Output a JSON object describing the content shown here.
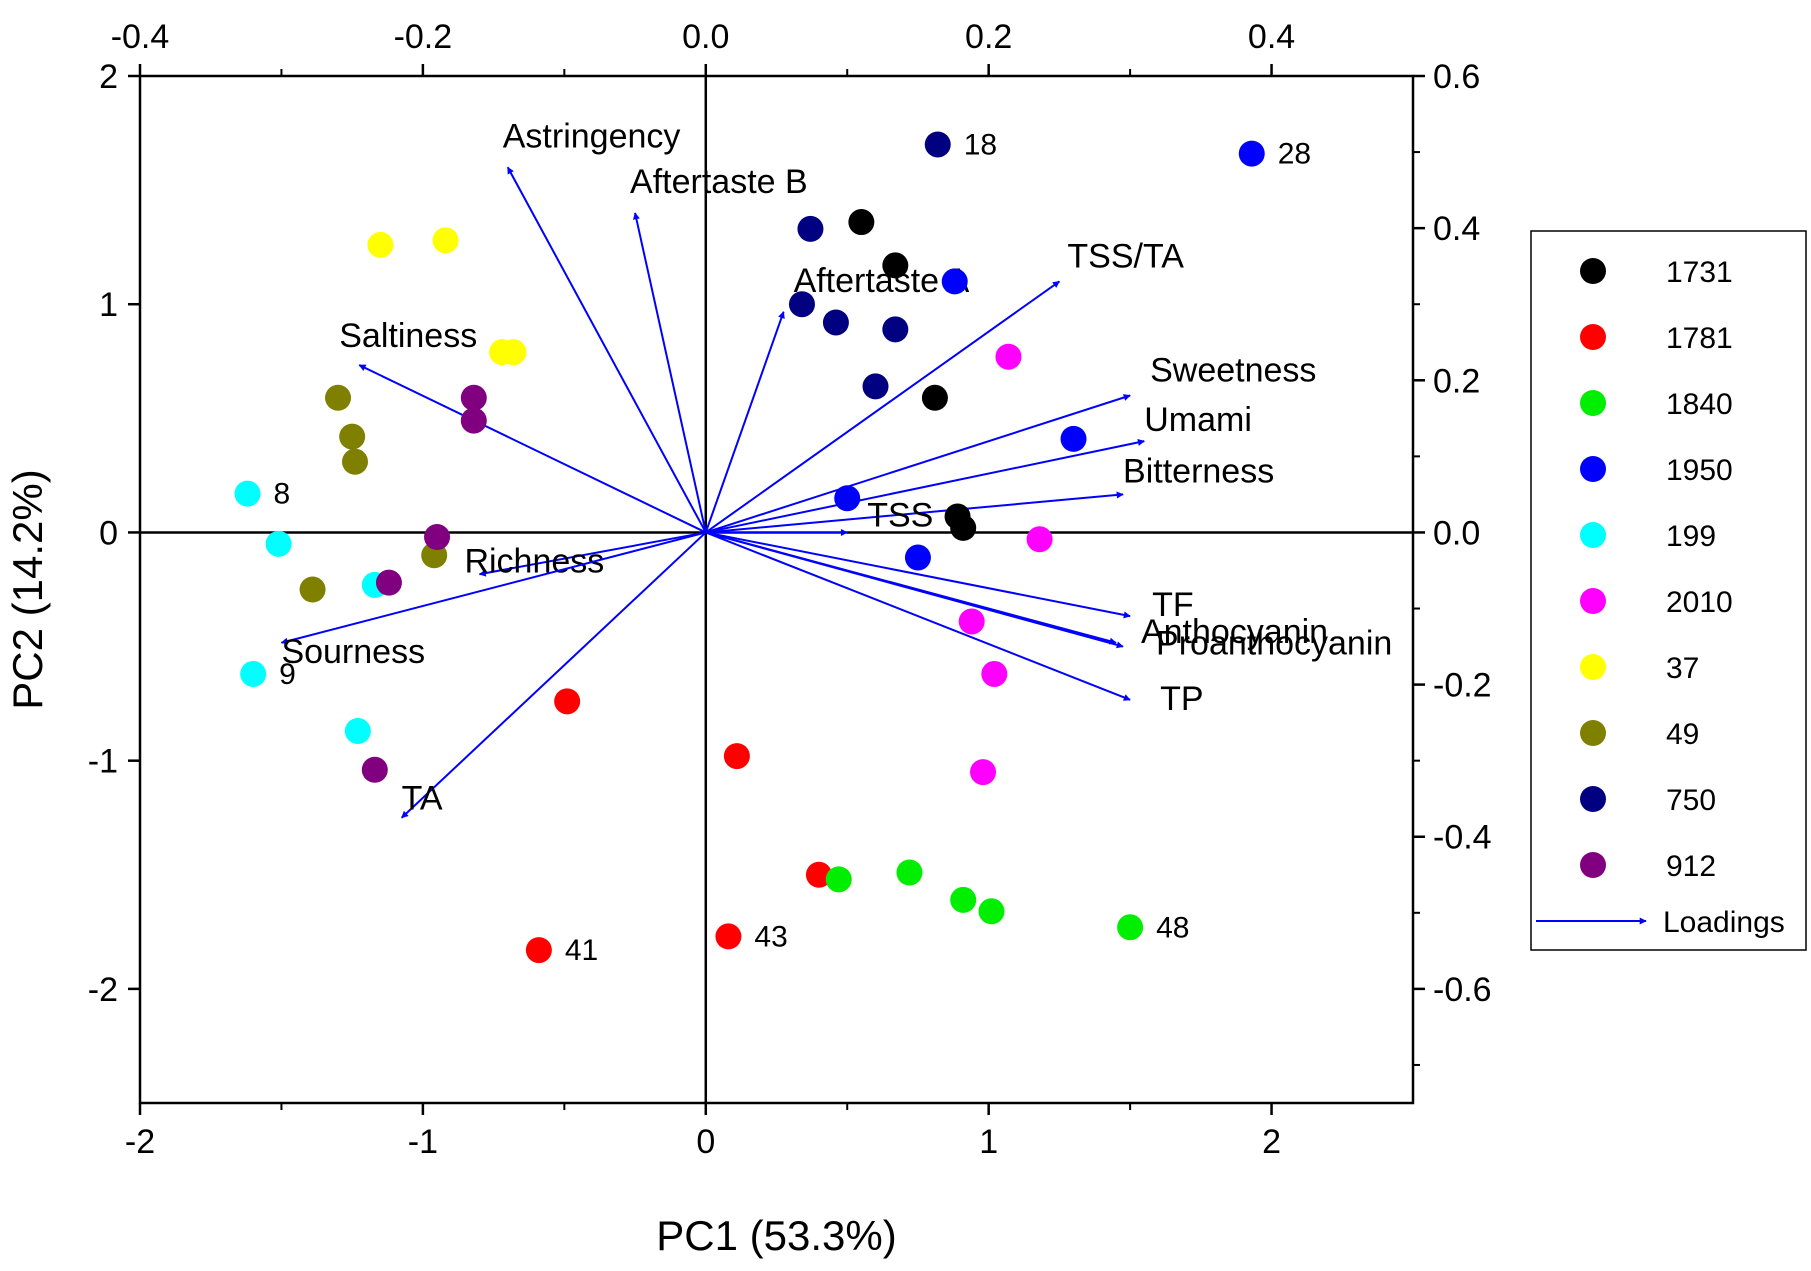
{
  "chart_data": {
    "type": "scatter",
    "subtype": "pca-biplot",
    "xlabel": "PC1 (53.3%)",
    "ylabel": "PC2 (14.2%)",
    "xlim": [
      -2,
      2.5
    ],
    "ylim": [
      -2.5,
      2
    ],
    "xticks": [
      -2,
      -1,
      0,
      1,
      2
    ],
    "yticks": [
      -2,
      -1,
      0,
      1,
      2
    ],
    "xtick_labels": [
      "-2",
      "-1",
      "0",
      "1",
      "2"
    ],
    "ytick_labels": [
      "-2",
      "-1",
      "0",
      "1",
      "2"
    ],
    "top_axis": {
      "lim": [
        -0.4,
        0.5
      ],
      "ticks": [
        -0.4,
        -0.2,
        0.0,
        0.2,
        0.4
      ],
      "tick_labels": [
        "-0.4",
        "-0.2",
        "0.0",
        "0.2",
        "0.4"
      ]
    },
    "right_axis": {
      "lim": [
        -0.75,
        0.6
      ],
      "ticks": [
        -0.6,
        -0.4,
        -0.2,
        0.0,
        0.2,
        0.4,
        0.6
      ],
      "tick_labels": [
        "-0.6",
        "-0.4",
        "-0.2",
        "0.0",
        "0.2",
        "0.4",
        "0.6"
      ]
    },
    "colors": {
      "1731": "#000000",
      "1781": "#ff0000",
      "1840": "#00ee00",
      "1950": "#0000ff",
      "199": "#00ffff",
      "2010": "#ff00ff",
      "37": "#ffff00",
      "49": "#808000",
      "750": "#000080",
      "912": "#800080",
      "loadings": "#0000ff"
    },
    "legend": {
      "position": "right",
      "entries": [
        "1731",
        "1781",
        "1840",
        "1950",
        "199",
        "2010",
        "37",
        "49",
        "750",
        "912"
      ],
      "loadings_label": "Loadings"
    },
    "series": [
      {
        "name": "1731",
        "points": [
          [
            0.55,
            1.36
          ],
          [
            0.67,
            1.17
          ],
          [
            0.81,
            0.59
          ],
          [
            0.89,
            0.07
          ],
          [
            0.91,
            0.02
          ]
        ]
      },
      {
        "name": "1781",
        "points": [
          [
            -0.49,
            -0.74
          ],
          [
            0.11,
            -0.98
          ],
          [
            0.4,
            -1.5
          ],
          [
            -0.59,
            -1.83
          ],
          [
            0.08,
            -1.77
          ]
        ]
      },
      {
        "name": "1840",
        "points": [
          [
            0.47,
            -1.52
          ],
          [
            0.72,
            -1.49
          ],
          [
            0.91,
            -1.61
          ],
          [
            1.01,
            -1.66
          ],
          [
            1.5,
            -1.73
          ]
        ]
      },
      {
        "name": "1950",
        "points": [
          [
            1.93,
            1.66
          ],
          [
            0.88,
            1.1
          ],
          [
            1.3,
            0.41
          ],
          [
            0.5,
            0.15
          ],
          [
            0.75,
            -0.11
          ]
        ]
      },
      {
        "name": "199",
        "points": [
          [
            -1.62,
            0.17
          ],
          [
            -1.51,
            -0.05
          ],
          [
            -1.6,
            -0.62
          ],
          [
            -1.17,
            -0.23
          ],
          [
            -1.23,
            -0.87
          ]
        ]
      },
      {
        "name": "2010",
        "points": [
          [
            1.07,
            0.77
          ],
          [
            1.18,
            -0.03
          ],
          [
            0.94,
            -0.39
          ],
          [
            1.02,
            -0.62
          ],
          [
            0.98,
            -1.05
          ]
        ]
      },
      {
        "name": "37",
        "points": [
          [
            -1.15,
            1.26
          ],
          [
            -0.92,
            1.28
          ],
          [
            -0.72,
            0.79
          ],
          [
            -0.68,
            0.79
          ]
        ]
      },
      {
        "name": "49",
        "points": [
          [
            -1.3,
            0.59
          ],
          [
            -1.25,
            0.42
          ],
          [
            -1.24,
            0.31
          ],
          [
            -0.96,
            -0.1
          ],
          [
            -1.39,
            -0.25
          ]
        ]
      },
      {
        "name": "750",
        "points": [
          [
            0.82,
            1.7
          ],
          [
            0.37,
            1.33
          ],
          [
            0.34,
            1.0
          ],
          [
            0.46,
            0.92
          ],
          [
            0.67,
            0.89
          ],
          [
            0.6,
            0.64
          ]
        ]
      },
      {
        "name": "912",
        "points": [
          [
            -0.82,
            0.59
          ],
          [
            -0.82,
            0.49
          ],
          [
            -0.95,
            -0.02
          ],
          [
            -1.12,
            -0.22
          ],
          [
            -1.17,
            -1.04
          ]
        ]
      }
    ],
    "loadings": [
      {
        "name": "Astringency",
        "x": -0.14,
        "y": 0.48
      },
      {
        "name": "Aftertaste B",
        "x": -0.05,
        "y": 0.42
      },
      {
        "name": "Aftertaste A",
        "x": 0.055,
        "y": 0.29
      },
      {
        "name": "TSS/TA",
        "x": 0.25,
        "y": 0.33
      },
      {
        "name": "Sweetness",
        "x": 0.3,
        "y": 0.18
      },
      {
        "name": "Umami",
        "x": 0.31,
        "y": 0.12
      },
      {
        "name": "Bitterness",
        "x": 0.295,
        "y": 0.05
      },
      {
        "name": "TSS",
        "x": 0.1,
        "y": 0.0
      },
      {
        "name": "TF",
        "x": 0.3,
        "y": -0.11
      },
      {
        "name": "Anthocyanin",
        "x": 0.29,
        "y": -0.145
      },
      {
        "name": "Proanthocyanin",
        "x": 0.295,
        "y": -0.15
      },
      {
        "name": "TP",
        "x": 0.3,
        "y": -0.22
      },
      {
        "name": "Saltiness",
        "x": -0.245,
        "y": 0.22
      },
      {
        "name": "Richness",
        "x": -0.16,
        "y": -0.055
      },
      {
        "name": "Sourness",
        "x": -0.3,
        "y": -0.145
      },
      {
        "name": "TA",
        "x": -0.215,
        "y": -0.375
      }
    ],
    "point_labels": [
      {
        "text": "18",
        "x": 0.82,
        "y": 1.7
      },
      {
        "text": "28",
        "x": 1.93,
        "y": 1.66
      },
      {
        "text": "8",
        "x": -1.62,
        "y": 0.17
      },
      {
        "text": "9",
        "x": -1.6,
        "y": -0.62
      },
      {
        "text": "41",
        "x": -0.59,
        "y": -1.83
      },
      {
        "text": "43",
        "x": 0.08,
        "y": -1.77
      },
      {
        "text": "48",
        "x": 1.5,
        "y": -1.73
      }
    ]
  }
}
